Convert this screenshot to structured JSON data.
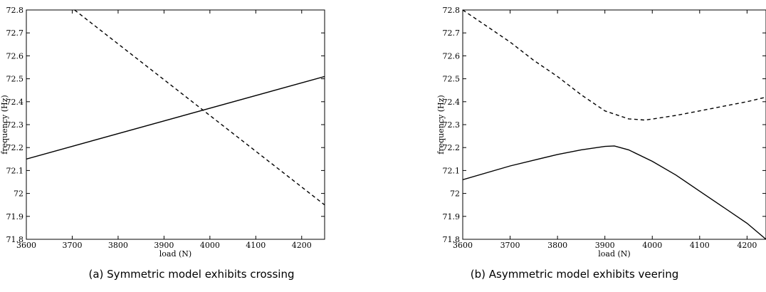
{
  "chart_data": [
    {
      "type": "line",
      "caption": "(a) Symmetric model exhibits crossing",
      "xlabel": "load (N)",
      "ylabel": "frequency (Hz)",
      "xlim": [
        3600,
        4250
      ],
      "ylim": [
        71.8,
        72.8
      ],
      "xticks": [
        "3600",
        "3700",
        "3800",
        "3900",
        "4000",
        "4100",
        "4200"
      ],
      "yticks": [
        "71.8",
        "71.9",
        "72",
        "72.1",
        "72.2",
        "72.3",
        "72.4",
        "72.5",
        "72.6",
        "72.7",
        "72.8"
      ],
      "grid": false,
      "series": [
        {
          "style": "solid",
          "x": [
            3600,
            4250
          ],
          "y": [
            72.15,
            72.51
          ]
        },
        {
          "style": "dashed",
          "x": [
            3705,
            4250
          ],
          "y": [
            72.8,
            71.95
          ]
        }
      ]
    },
    {
      "type": "line",
      "caption": "(b) Asymmetric model exhibits veering",
      "xlabel": "load (N)",
      "ylabel": "frequency (Hz)",
      "xlim": [
        3600,
        4240
      ],
      "ylim": [
        71.8,
        72.8
      ],
      "xticks": [
        "3600",
        "3700",
        "3800",
        "3900",
        "4000",
        "4100",
        "4200"
      ],
      "yticks": [
        "71.8",
        "71.9",
        "72",
        "72.1",
        "72.2",
        "72.3",
        "72.4",
        "72.5",
        "72.6",
        "72.7",
        "72.8"
      ],
      "grid": false,
      "series": [
        {
          "style": "solid",
          "x": [
            3600,
            3700,
            3800,
            3850,
            3900,
            3920,
            3950,
            4000,
            4050,
            4100,
            4150,
            4200,
            4240
          ],
          "y": [
            72.06,
            72.12,
            72.17,
            72.19,
            72.205,
            72.207,
            72.19,
            72.14,
            72.08,
            72.01,
            71.94,
            71.87,
            71.8
          ]
        },
        {
          "style": "dashed",
          "x": [
            3600,
            3650,
            3700,
            3750,
            3800,
            3850,
            3900,
            3950,
            3985,
            4050,
            4100,
            4150,
            4200,
            4240
          ],
          "y": [
            72.8,
            72.73,
            72.66,
            72.58,
            72.51,
            72.43,
            72.36,
            72.325,
            72.32,
            72.34,
            72.36,
            72.38,
            72.4,
            72.42
          ]
        }
      ]
    }
  ]
}
